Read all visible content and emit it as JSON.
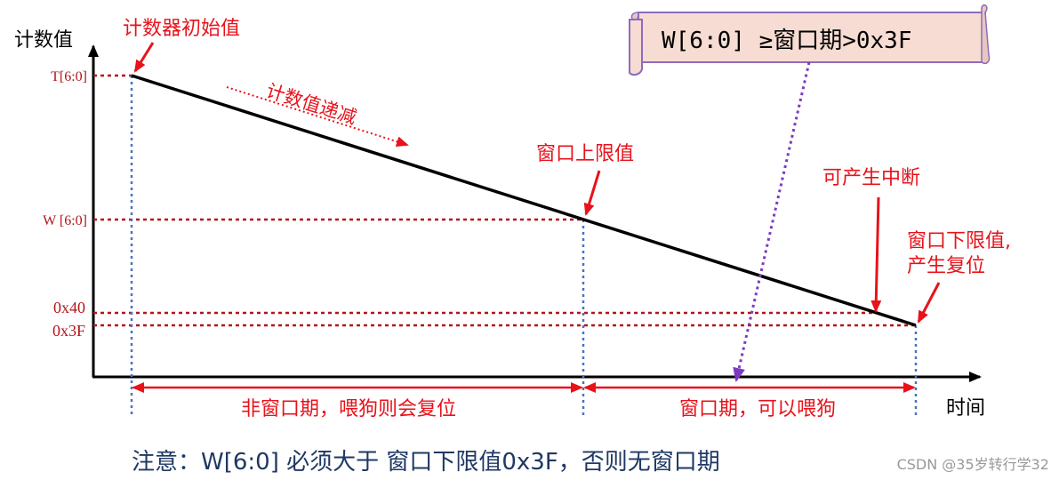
{
  "axis": {
    "y_label": "计数值",
    "x_label": "时间"
  },
  "ticks": {
    "t": "T[6:0]",
    "w": "W [6:0]",
    "h40": "0x40",
    "h3f": "0x3F"
  },
  "annotations": {
    "initial_value": "计数器初始值",
    "decreasing": "计数值递减",
    "upper_limit": "窗口上限值",
    "interrupt": "可产生中断",
    "lower_limit_line1": "窗口下限值,",
    "lower_limit_line2": "产生复位"
  },
  "scroll_note": "W[6:0] ≥窗口期>0x3F",
  "periods": {
    "non_window": "非窗口期，喂狗则会复位",
    "window": "窗口期，可以喂狗"
  },
  "footer_note": "注意：W[6:0] 必须大于 窗口下限值0x3F，否则无窗口期",
  "watermark": "CSDN @35岁转行学32",
  "colors": {
    "axis": "#000000",
    "red": "#e8121b",
    "dark_red": "#b3141d",
    "blue_dotted": "#4a72c4",
    "purple": "#7a3bc0",
    "scroll_fill": "#f6dcd2",
    "scroll_border": "#8e6bbf",
    "footer_text": "#1f3864"
  }
}
